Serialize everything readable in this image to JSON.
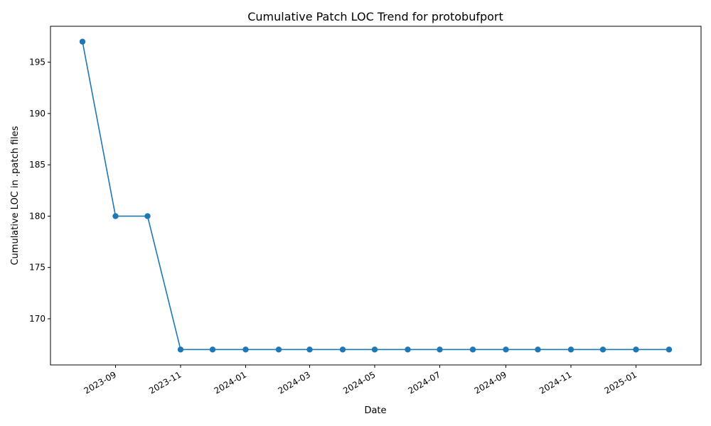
{
  "chart_data": {
    "type": "line",
    "title": "Cumulative Patch LOC Trend for protobufport",
    "xlabel": "Date",
    "ylabel": "Cumulative LOC in .patch files",
    "x": [
      "2023-08-01",
      "2023-09-01",
      "2023-10-01",
      "2023-11-01",
      "2023-12-01",
      "2024-01-01",
      "2024-02-01",
      "2024-03-01",
      "2024-04-01",
      "2024-05-01",
      "2024-06-01",
      "2024-07-01",
      "2024-08-01",
      "2024-09-01",
      "2024-10-01",
      "2024-11-01",
      "2024-12-01",
      "2025-01-01",
      "2025-02-01"
    ],
    "series": [
      {
        "name": "Cumulative LOC",
        "color": "#1f77b4",
        "marker": "circle",
        "values": [
          197,
          180,
          180,
          167,
          167,
          167,
          167,
          167,
          167,
          167,
          167,
          167,
          167,
          167,
          167,
          167,
          167,
          167,
          167
        ]
      }
    ],
    "x_ticks": [
      "2023-09",
      "2023-11",
      "2024-01",
      "2024-03",
      "2024-05",
      "2024-07",
      "2024-09",
      "2024-11",
      "2025-01"
    ],
    "x_tick_dates": [
      "2023-09-01",
      "2023-11-01",
      "2024-01-01",
      "2024-03-01",
      "2024-05-01",
      "2024-07-01",
      "2024-09-01",
      "2024-11-01",
      "2025-01-01"
    ],
    "y_ticks": [
      170,
      175,
      180,
      185,
      190,
      195
    ],
    "xlim": [
      "2023-07-02",
      "2025-03-03"
    ],
    "ylim": [
      165.5,
      198.5
    ],
    "grid": false
  }
}
